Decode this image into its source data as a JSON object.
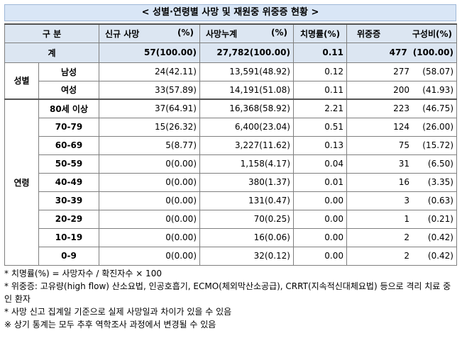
{
  "title": "< 성별·연령별 사망 및 재원중 위중증 현황 >",
  "header": {
    "category": "구 분",
    "new_deaths": "신규 사망",
    "new_deaths_unit": "(%)",
    "cum_deaths": "사망누계",
    "cum_deaths_unit": "(%)",
    "fatality": "치명률(%)",
    "critical": "위중증",
    "critical_unit": "구성비(%)"
  },
  "total": {
    "label": "계",
    "new_deaths": "57(100.00)",
    "cum_deaths": "27,782(100.00)",
    "fatality": "0.11",
    "critical": "477",
    "critical_pct": "(100.00)"
  },
  "groups": {
    "sex": "성별",
    "age": "연령"
  },
  "sex_rows": [
    {
      "label": "남성",
      "new_deaths": "24(42.11)",
      "cum_deaths": "13,591(48.92)",
      "fatality": "0.12",
      "critical": "277",
      "critical_pct": "(58.07)"
    },
    {
      "label": "여성",
      "new_deaths": "33(57.89)",
      "cum_deaths": "14,191(51.08)",
      "fatality": "0.11",
      "critical": "200",
      "critical_pct": "(41.93)"
    }
  ],
  "age_rows": [
    {
      "label": "80세 이상",
      "new_deaths": "37(64.91)",
      "cum_deaths": "16,368(58.92)",
      "fatality": "2.21",
      "critical": "223",
      "critical_pct": "(46.75)"
    },
    {
      "label": "70-79",
      "new_deaths": "15(26.32)",
      "cum_deaths": "6,400(23.04)",
      "fatality": "0.51",
      "critical": "124",
      "critical_pct": "(26.00)"
    },
    {
      "label": "60-69",
      "new_deaths": "5(8.77)",
      "cum_deaths": "3,227(11.62)",
      "fatality": "0.13",
      "critical": "75",
      "critical_pct": "(15.72)"
    },
    {
      "label": "50-59",
      "new_deaths": "0(0.00)",
      "cum_deaths": "1,158(4.17)",
      "fatality": "0.04",
      "critical": "31",
      "critical_pct": "(6.50)"
    },
    {
      "label": "40-49",
      "new_deaths": "0(0.00)",
      "cum_deaths": "380(1.37)",
      "fatality": "0.01",
      "critical": "16",
      "critical_pct": "(3.35)"
    },
    {
      "label": "30-39",
      "new_deaths": "0(0.00)",
      "cum_deaths": "131(0.47)",
      "fatality": "0.00",
      "critical": "3",
      "critical_pct": "(0.63)"
    },
    {
      "label": "20-29",
      "new_deaths": "0(0.00)",
      "cum_deaths": "70(0.25)",
      "fatality": "0.00",
      "critical": "1",
      "critical_pct": "(0.21)"
    },
    {
      "label": "10-19",
      "new_deaths": "0(0.00)",
      "cum_deaths": "16(0.06)",
      "fatality": "0.00",
      "critical": "2",
      "critical_pct": "(0.42)"
    },
    {
      "label": "0-9",
      "new_deaths": "0(0.00)",
      "cum_deaths": "32(0.12)",
      "fatality": "0.00",
      "critical": "2",
      "critical_pct": "(0.42)"
    }
  ],
  "notes": [
    "* 치명률(%) = 사망자수 / 확진자수 × 100",
    "* 위중증: 고유량(high flow) 산소요법, 인공호흡기, ECMO(체외막산소공급), CRRT(지속적신대체요법) 등으로 격리 치료 중인 환자",
    "* 사망 신고 집계일 기준으로 실제 사망일과 차이가 있을 수 있음",
    "※ 상기 통계는 모두 추후 역학조사 과정에서 변경될 수 있음"
  ]
}
